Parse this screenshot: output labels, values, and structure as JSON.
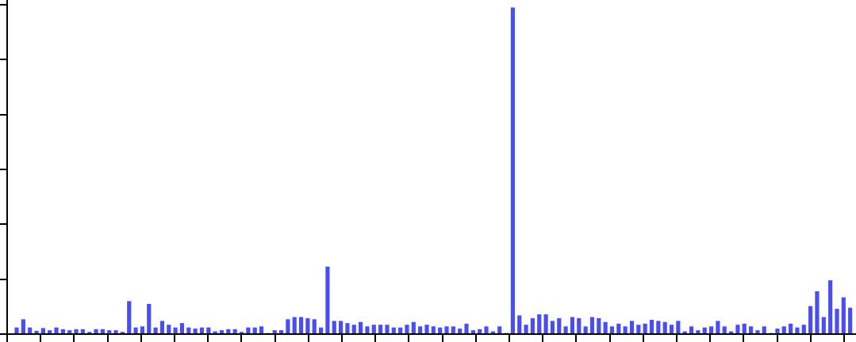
{
  "chart_data": {
    "type": "bar",
    "title": "",
    "xlabel": "",
    "ylabel": "",
    "ylim": [
      0,
      6
    ],
    "y_ticks": [
      0,
      1,
      2,
      3,
      4,
      5,
      6
    ],
    "x_tick_count": 26,
    "grid": false,
    "legend": "none",
    "bar_color": "#4a4df0",
    "values": [
      0.12,
      0.27,
      0.12,
      0.06,
      0.11,
      0.07,
      0.12,
      0.09,
      0.07,
      0.09,
      0.09,
      0.04,
      0.09,
      0.09,
      0.07,
      0.07,
      0.04,
      0.6,
      0.12,
      0.14,
      0.55,
      0.12,
      0.24,
      0.17,
      0.12,
      0.2,
      0.12,
      0.1,
      0.12,
      0.12,
      0.05,
      0.07,
      0.09,
      0.09,
      0.04,
      0.12,
      0.12,
      0.14,
      0.02,
      0.07,
      0.07,
      0.27,
      0.31,
      0.31,
      0.29,
      0.27,
      0.12,
      1.23,
      0.24,
      0.24,
      0.2,
      0.17,
      0.22,
      0.14,
      0.17,
      0.17,
      0.17,
      0.12,
      0.12,
      0.17,
      0.22,
      0.14,
      0.17,
      0.14,
      0.12,
      0.14,
      0.14,
      0.1,
      0.19,
      0.07,
      0.09,
      0.14,
      0.05,
      0.14,
      0.02,
      5.95,
      0.34,
      0.17,
      0.29,
      0.36,
      0.36,
      0.24,
      0.29,
      0.14,
      0.31,
      0.29,
      0.14,
      0.31,
      0.29,
      0.22,
      0.14,
      0.19,
      0.14,
      0.24,
      0.17,
      0.19,
      0.26,
      0.24,
      0.22,
      0.17,
      0.24,
      0.05,
      0.14,
      0.07,
      0.12,
      0.14,
      0.24,
      0.14,
      0.05,
      0.17,
      0.19,
      0.14,
      0.07,
      0.14,
      0.02,
      0.1,
      0.14,
      0.19,
      0.12,
      0.17,
      0.51,
      0.78,
      0.31,
      0.98,
      0.46,
      0.67,
      0.48
    ]
  }
}
